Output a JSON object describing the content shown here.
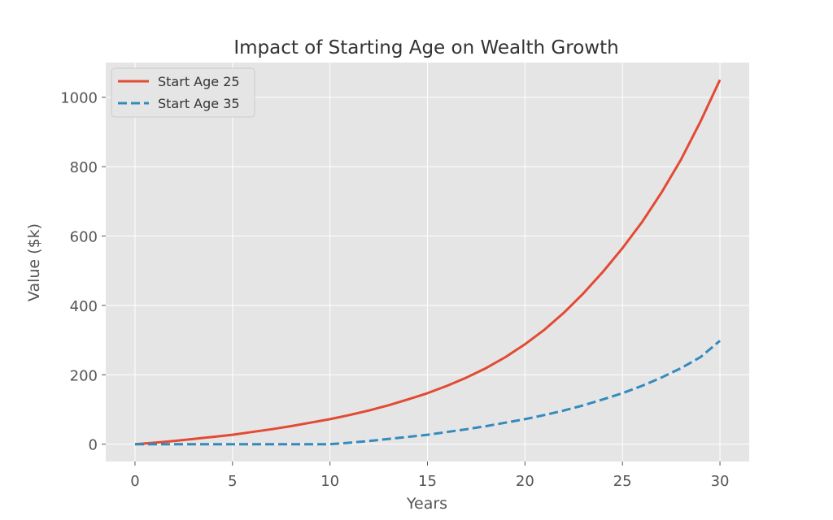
{
  "chart_data": {
    "type": "line",
    "title": "Impact of Starting Age on Wealth Growth",
    "xlabel": "Years",
    "ylabel": "Value ($k)",
    "xlim": [
      -1.5,
      31.5
    ],
    "ylim": [
      -50,
      1100
    ],
    "xticks": [
      0,
      5,
      10,
      15,
      20,
      25,
      30
    ],
    "xtick_labels": [
      "0",
      "5",
      "10",
      "15",
      "20",
      "25",
      "30"
    ],
    "yticks": [
      0,
      200,
      400,
      600,
      800,
      1000
    ],
    "ytick_labels": [
      "0",
      "200",
      "400",
      "600",
      "800",
      "1000"
    ],
    "grid": true,
    "legend_position": "top-left",
    "x": [
      0,
      1,
      2,
      3,
      4,
      5,
      6,
      7,
      8,
      9,
      10,
      11,
      12,
      13,
      14,
      15,
      16,
      17,
      18,
      19,
      20,
      21,
      22,
      23,
      24,
      25,
      26,
      27,
      28,
      29,
      30
    ],
    "series": [
      {
        "name": "Start Age 25",
        "color": "#E24A33",
        "style": "solid",
        "values": [
          0,
          4,
          9,
          15,
          21,
          27,
          35,
          43,
          52,
          62,
          72,
          84,
          97,
          112,
          129,
          147,
          168,
          192,
          219,
          251,
          288,
          330,
          379,
          435,
          497,
          565,
          640,
          725,
          820,
          930,
          1050
        ]
      },
      {
        "name": "Start Age 35",
        "color": "#348ABD",
        "style": "dashed",
        "values": [
          0,
          0,
          0,
          0,
          0,
          0,
          0,
          0,
          0,
          0,
          0,
          4,
          9,
          15,
          21,
          27,
          35,
          43,
          52,
          62,
          72,
          84,
          97,
          112,
          129,
          147,
          168,
          192,
          219,
          251,
          298
        ]
      }
    ]
  }
}
